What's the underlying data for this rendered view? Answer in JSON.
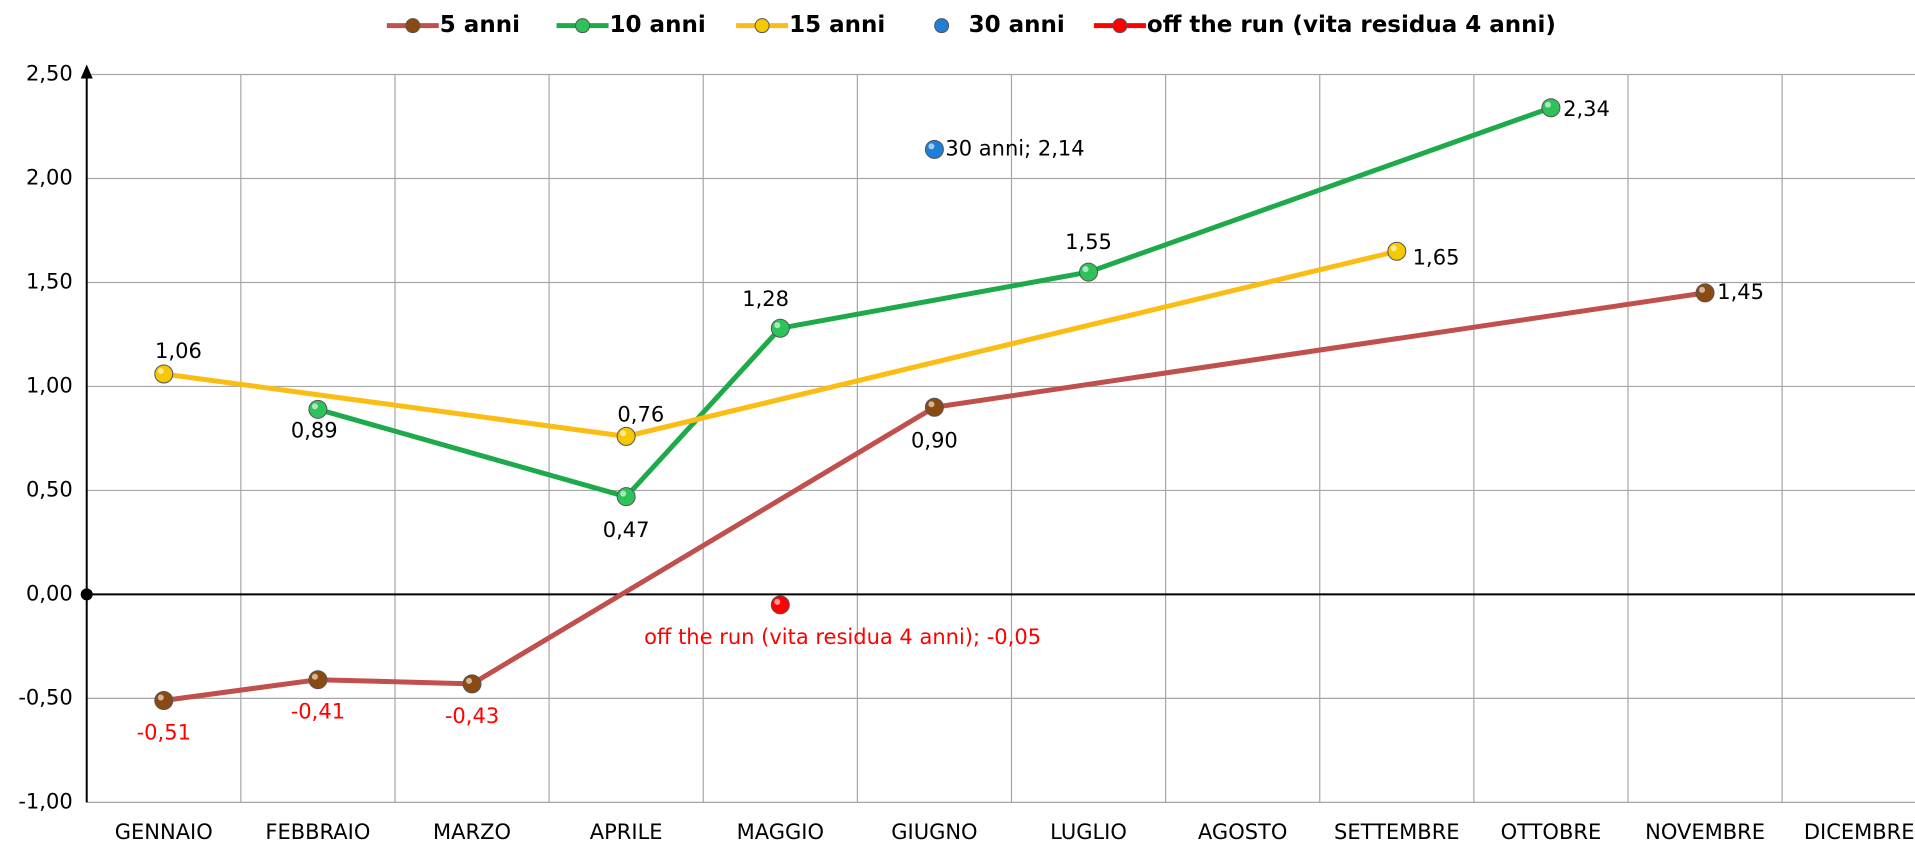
{
  "chart_data": {
    "type": "line",
    "categories": [
      "GENNAIO",
      "FEBBRAIO",
      "MARZO",
      "APRILE",
      "MAGGIO",
      "GIUGNO",
      "LUGLIO",
      "AGOSTO",
      "SETTEMBRE",
      "OTTOBRE",
      "NOVEMBRE",
      "DICEMBRE"
    ],
    "series": [
      {
        "name": "5 anni",
        "color": "#c0504d",
        "marker_color": "#8a4a12",
        "values": [
          -0.51,
          -0.41,
          -0.43,
          null,
          null,
          0.9,
          null,
          null,
          null,
          null,
          1.45,
          null
        ],
        "value_labels": [
          "-0,51",
          "-0,41",
          "-0,43",
          null,
          null,
          "0,90",
          null,
          null,
          null,
          null,
          "1,45",
          null
        ]
      },
      {
        "name": "10 anni",
        "color": "#1eaa4b",
        "marker_color": "#2ec35a",
        "values": [
          null,
          0.89,
          null,
          0.47,
          1.28,
          null,
          1.55,
          null,
          null,
          2.34,
          null,
          null
        ],
        "value_labels": [
          null,
          "0,89",
          null,
          "0,47",
          "1,28",
          null,
          "1,55",
          null,
          null,
          "2,34",
          null,
          null
        ]
      },
      {
        "name": "15 anni",
        "color": "#fbbd13",
        "marker_color": "#f5c800",
        "values": [
          1.06,
          null,
          null,
          0.76,
          null,
          null,
          null,
          null,
          1.65,
          null,
          null,
          null
        ],
        "value_labels": [
          "1,06",
          null,
          null,
          "0,76",
          null,
          null,
          null,
          null,
          "1,65",
          null,
          null,
          null
        ]
      },
      {
        "name": "30 anni",
        "color": "#1f7fd6",
        "marker_color": "#1f7fd6",
        "values": [
          null,
          null,
          null,
          null,
          null,
          2.14,
          null,
          null,
          null,
          null,
          null,
          null
        ],
        "value_labels": [
          null,
          null,
          null,
          null,
          null,
          "30 anni; 2,14",
          null,
          null,
          null,
          null,
          null,
          null
        ]
      },
      {
        "name": "off the run (vita residua 4 anni)",
        "color": "#ff0000",
        "marker_color": "#ff0000",
        "values": [
          null,
          null,
          null,
          null,
          -0.05,
          null,
          null,
          null,
          null,
          null,
          null,
          null
        ],
        "value_labels": [
          null,
          null,
          null,
          null,
          "off the run (vita residua 4 anni); -0,05",
          null,
          null,
          null,
          null,
          null,
          null,
          null
        ]
      }
    ],
    "span_gaps": true,
    "ylim": [
      -1,
      2.5
    ],
    "yticks": [
      {
        "value": -1,
        "label": "-1,00"
      },
      {
        "value": -0.5,
        "label": "-0,50"
      },
      {
        "value": 0,
        "label": "0,00"
      },
      {
        "value": 0.5,
        "label": "0,50"
      },
      {
        "value": 1,
        "label": "1,00"
      },
      {
        "value": 1.5,
        "label": "1,50"
      },
      {
        "value": 2,
        "label": "2,00"
      },
      {
        "value": 2.5,
        "label": "2,50"
      }
    ],
    "grid": true,
    "legend": "top"
  }
}
